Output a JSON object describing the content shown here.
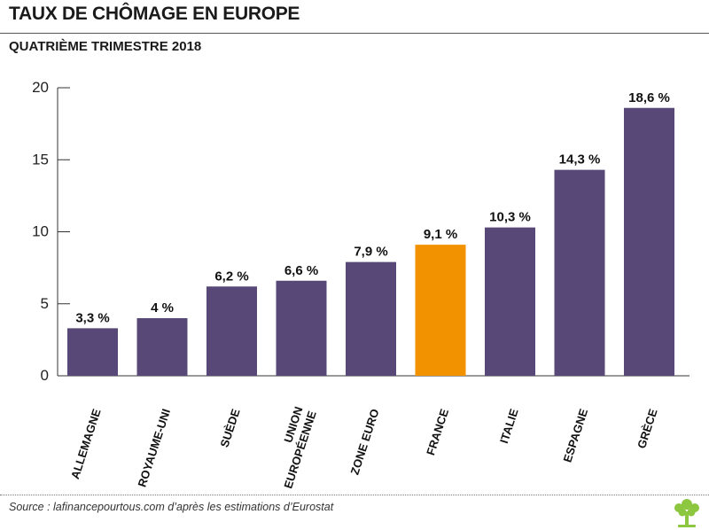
{
  "header": {
    "title": "TAUX DE CHÔMAGE EN EUROPE",
    "subtitle": "QUATRIÈME TRIMESTRE 2018"
  },
  "footer": {
    "source": "Source : lafinancepourtous.com d’après les estimations d’Eurostat"
  },
  "logo": {
    "icon": "tree-icon",
    "color": "#8dc63f"
  },
  "colors": {
    "bar": "#574878",
    "highlight": "#f39200"
  },
  "chart_data": {
    "type": "bar",
    "title": "TAUX DE CHÔMAGE EN EUROPE",
    "subtitle": "QUATRIÈME TRIMESTRE 2018",
    "categories": [
      [
        "ALLEMAGNE"
      ],
      [
        "ROYAUME-UNI"
      ],
      [
        "SUÈDE"
      ],
      [
        "UNION",
        "EUROPÉENNE"
      ],
      [
        "ZONE EURO"
      ],
      [
        "FRANCE"
      ],
      [
        "ITALIE"
      ],
      [
        "ESPAGNE"
      ],
      [
        "GRÈCE"
      ]
    ],
    "values": [
      3.3,
      4,
      6.2,
      6.6,
      7.9,
      9.1,
      10.3,
      14.3,
      18.6
    ],
    "value_labels": [
      "3,3 %",
      "4 %",
      "6,2 %",
      "6,6 %",
      "7,9 %",
      "9,1 %",
      "10,3 %",
      "14,3 %",
      "18,6 %"
    ],
    "highlight_index": 5,
    "yticks": [
      "0",
      "5",
      "10",
      "15",
      "20"
    ],
    "ylim": [
      0,
      20
    ],
    "grid": false,
    "legend": "none"
  }
}
